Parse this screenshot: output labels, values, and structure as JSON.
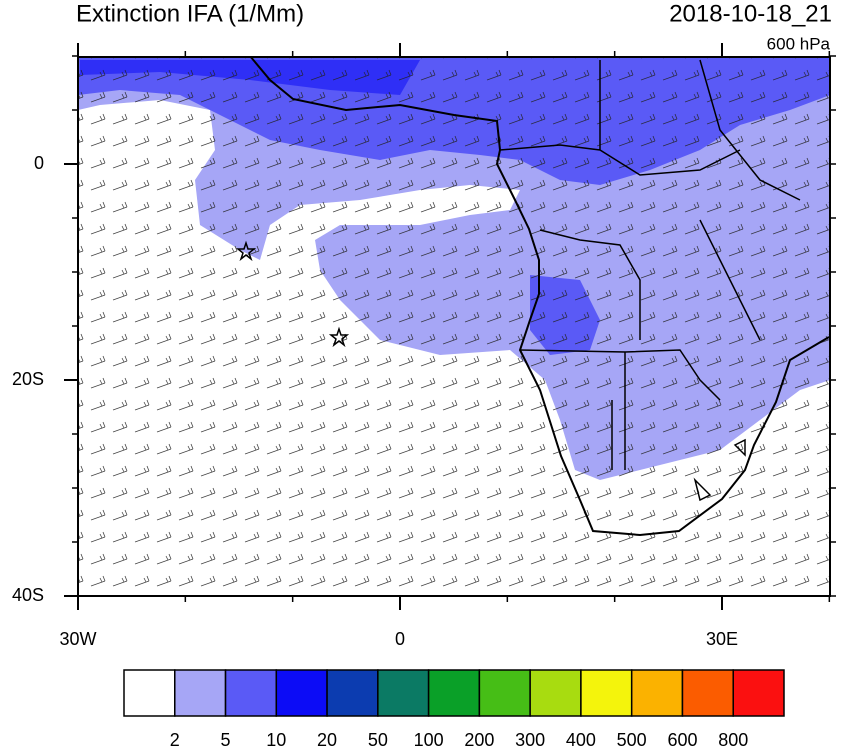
{
  "header": {
    "title": "Extinction IFA (1/Mm)",
    "timestamp": "2018-10-18_21",
    "level": "600 hPa"
  },
  "axes": {
    "lat_labels": [
      {
        "value": 0,
        "label": "0"
      },
      {
        "value": -20,
        "label": "20S"
      },
      {
        "value": -40,
        "label": "40S"
      }
    ],
    "lon_labels": [
      {
        "value": -30,
        "label": "30W"
      },
      {
        "value": 0,
        "label": "0"
      },
      {
        "value": 30,
        "label": "30E"
      }
    ]
  },
  "colorbar": {
    "colors": [
      "#ffffff",
      "#a6a6f6",
      "#5a5af6",
      "#0c0cf6",
      "#0c3cb0",
      "#0b7a64",
      "#0aa028",
      "#46be16",
      "#a8dc10",
      "#f4f40c",
      "#fbb200",
      "#fb5c00",
      "#fb1010"
    ],
    "labels": [
      2,
      5,
      10,
      20,
      50,
      100,
      200,
      300,
      400,
      500,
      600,
      800
    ]
  }
}
